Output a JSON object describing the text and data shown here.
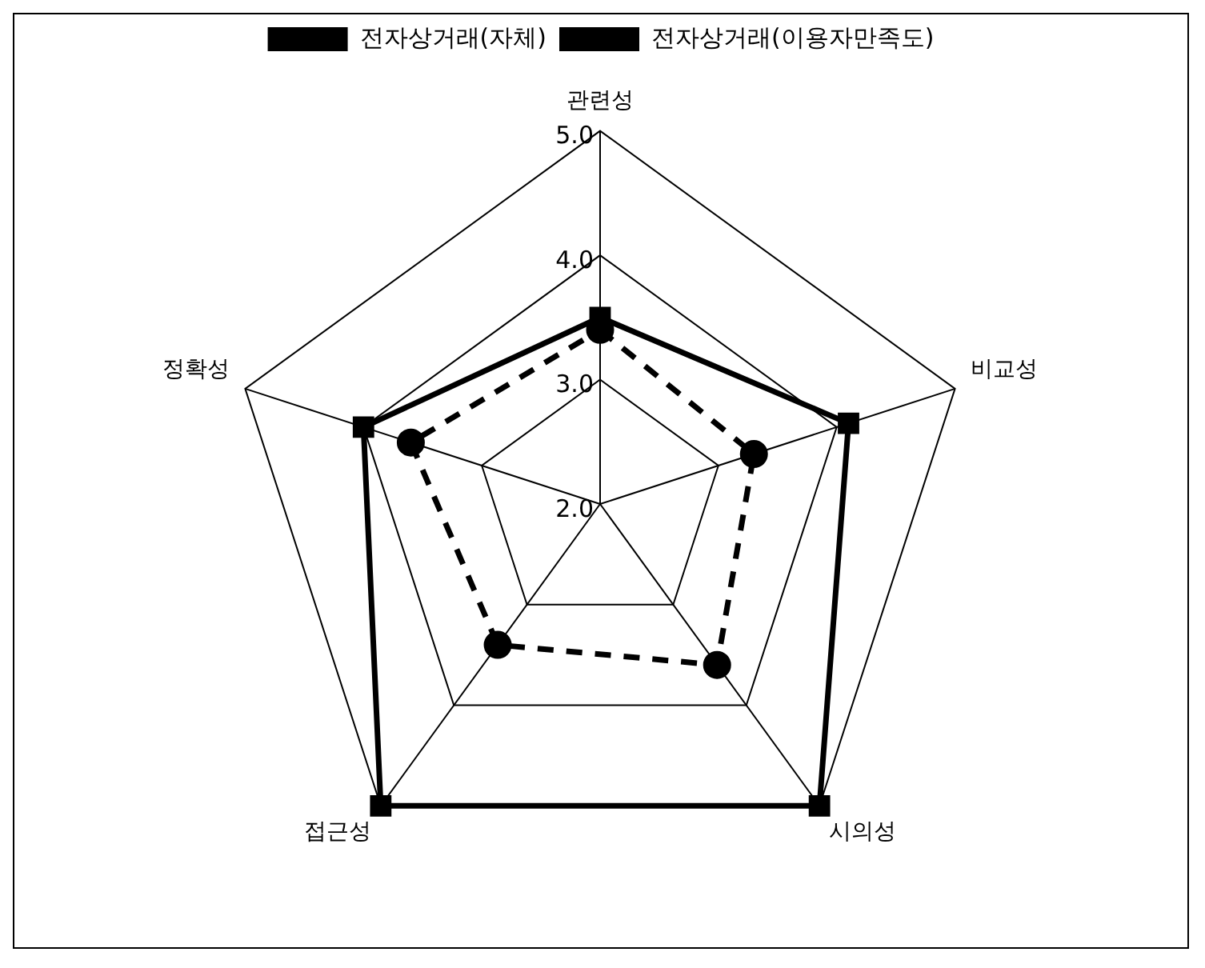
{
  "chart_data": {
    "type": "radar",
    "categories": [
      "관련성",
      "비교성",
      "시의성",
      "접근성",
      "정확성"
    ],
    "series": [
      {
        "name": "전자상거래(자체)",
        "color": "#000000",
        "values": [
          3.5,
          4.1,
          5.0,
          5.0,
          4.0
        ],
        "marker": "square",
        "line_style": "solid"
      },
      {
        "name": "전자상거래(이용자만족도)",
        "color": "#000000",
        "values": [
          3.4,
          3.3,
          3.6,
          3.4,
          3.6
        ],
        "marker": "circle",
        "line_style": "dashed"
      }
    ],
    "ylim": [
      2,
      5
    ],
    "yticks": [
      {
        "value": 2,
        "label": "2.0"
      },
      {
        "value": 3,
        "label": "3.0"
      },
      {
        "value": 4,
        "label": "4.0"
      },
      {
        "value": 5,
        "label": "5.0"
      }
    ],
    "grid": true,
    "legend": "top"
  }
}
